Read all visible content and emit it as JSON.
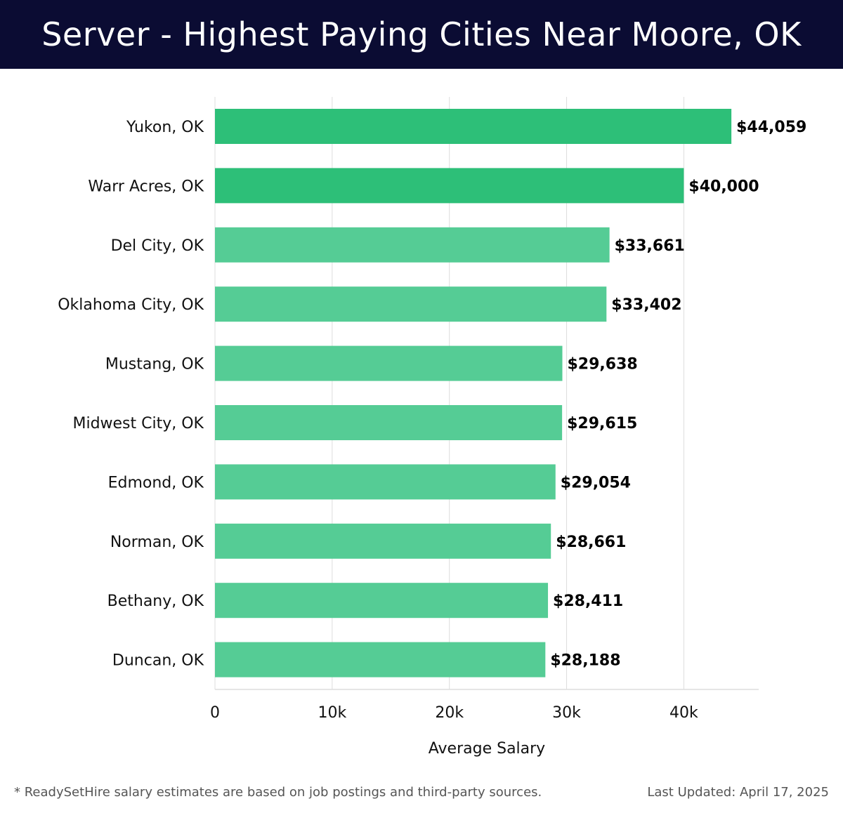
{
  "header": {
    "title": "Server - Highest Paying Cities Near Moore, OK"
  },
  "chart_data": {
    "type": "bar",
    "orientation": "horizontal",
    "categories": [
      "Yukon, OK",
      "Warr Acres, OK",
      "Del City, OK",
      "Oklahoma City, OK",
      "Mustang, OK",
      "Midwest City, OK",
      "Edmond, OK",
      "Norman, OK",
      "Bethany, OK",
      "Duncan, OK"
    ],
    "values": [
      44059,
      40000,
      33661,
      33402,
      29638,
      29615,
      29054,
      28661,
      28411,
      28188
    ],
    "value_labels": [
      "$44,059",
      "$40,000",
      "$33,661",
      "$33,402",
      "$29,638",
      "$29,615",
      "$29,054",
      "$28,661",
      "$28,411",
      "$28,188"
    ],
    "xlabel": "Average Salary",
    "ylabel": "",
    "xlim": [
      0,
      46500
    ],
    "x_ticks": [
      0,
      10000,
      20000,
      30000,
      40000
    ],
    "x_tick_labels": [
      "0",
      "10k",
      "20k",
      "30k",
      "40k"
    ],
    "grid": "vertical",
    "colors": {
      "top_bars": "#2dbf78",
      "other_bars": "#55cc95",
      "grid": "#dddddd",
      "label": "#111111",
      "value_label": "#000000"
    },
    "highlighted_count": 2
  },
  "footer": {
    "note": "* ReadySetHire salary estimates are based on job postings and third-party sources.",
    "updated": "Last Updated: April 17, 2025"
  }
}
